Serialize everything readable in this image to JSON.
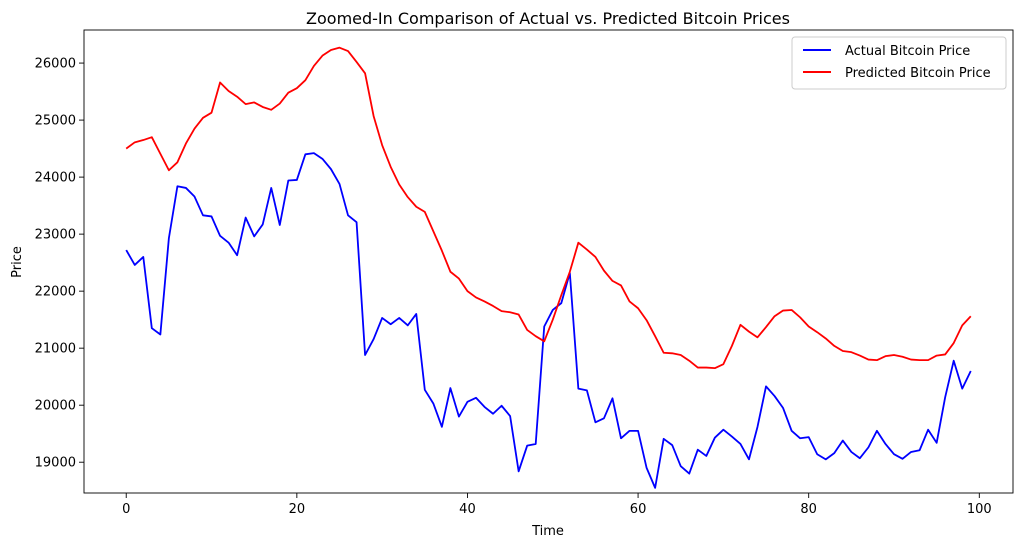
{
  "chart_data": {
    "type": "line",
    "title": "Zoomed-In Comparison of Actual vs. Predicted Bitcoin Prices",
    "xlabel": "Time",
    "ylabel": "Price",
    "xlim": [
      -4.95,
      103.95
    ],
    "ylim": [
      18460,
      26580
    ],
    "xticks": [
      0,
      20,
      40,
      60,
      80,
      100
    ],
    "yticks": [
      19000,
      20000,
      21000,
      22000,
      23000,
      24000,
      25000,
      26000
    ],
    "grid": false,
    "legend_position": "top-right",
    "x": [
      0,
      1,
      2,
      3,
      4,
      5,
      6,
      7,
      8,
      9,
      10,
      11,
      12,
      13,
      14,
      15,
      16,
      17,
      18,
      19,
      20,
      21,
      22,
      23,
      24,
      25,
      26,
      27,
      28,
      29,
      30,
      31,
      32,
      33,
      34,
      35,
      36,
      37,
      38,
      39,
      40,
      41,
      42,
      43,
      44,
      45,
      46,
      47,
      48,
      49,
      50,
      51,
      52,
      53,
      54,
      55,
      56,
      57,
      58,
      59,
      60,
      61,
      62,
      63,
      64,
      65,
      66,
      67,
      68,
      69,
      70,
      71,
      72,
      73,
      74,
      75,
      76,
      77,
      78,
      79,
      80,
      81,
      82,
      83,
      84,
      85,
      86,
      87,
      88,
      89,
      90,
      91,
      92,
      93,
      94,
      95,
      96,
      97,
      98,
      99
    ],
    "series": [
      {
        "name": "Actual Bitcoin Price",
        "color": "#0000ff",
        "values": [
          22720,
          22460,
          22600,
          21350,
          21240,
          22930,
          23840,
          23810,
          23660,
          23330,
          23310,
          22970,
          22850,
          22630,
          23290,
          22960,
          23170,
          23810,
          23160,
          23940,
          23950,
          24400,
          24420,
          24320,
          24140,
          23880,
          23330,
          23210,
          20880,
          21160,
          21530,
          21420,
          21530,
          21400,
          21600,
          20270,
          20030,
          19620,
          20300,
          19800,
          20060,
          20130,
          19970,
          19850,
          19990,
          19810,
          18840,
          19290,
          19320,
          21380,
          21670,
          21790,
          22320,
          20290,
          20260,
          19700,
          19770,
          20120,
          19420,
          19550,
          19550,
          18900,
          18550,
          19410,
          19300,
          18930,
          18800,
          19220,
          19110,
          19430,
          19570,
          19450,
          19320,
          19050,
          19620,
          20330,
          20160,
          19950,
          19550,
          19420,
          19440,
          19140,
          19050,
          19160,
          19380,
          19180,
          19070,
          19260,
          19550,
          19320,
          19140,
          19060,
          19180,
          19210,
          19570,
          19340,
          20140,
          20780,
          20290,
          20600
        ]
      },
      {
        "name": "Predicted Bitcoin Price",
        "color": "#ff0000",
        "values": [
          24500,
          24610,
          24650,
          24700,
          24410,
          24120,
          24260,
          24590,
          24850,
          25040,
          25130,
          25660,
          25510,
          25410,
          25280,
          25310,
          25230,
          25180,
          25290,
          25480,
          25560,
          25700,
          25950,
          26130,
          26230,
          26270,
          26210,
          26020,
          25820,
          25070,
          24560,
          24180,
          23870,
          23650,
          23480,
          23390,
          23050,
          22710,
          22340,
          22220,
          22000,
          21890,
          21820,
          21740,
          21650,
          21630,
          21590,
          21320,
          21210,
          21120,
          21500,
          21930,
          22340,
          22850,
          22730,
          22600,
          22360,
          22180,
          22100,
          21820,
          21700,
          21490,
          21210,
          20920,
          20910,
          20880,
          20780,
          20660,
          20660,
          20650,
          20720,
          21040,
          21410,
          21290,
          21190,
          21370,
          21560,
          21660,
          21670,
          21540,
          21380,
          21280,
          21170,
          21040,
          20950,
          20930,
          20870,
          20800,
          20790,
          20860,
          20880,
          20850,
          20800,
          20790,
          20790,
          20870,
          20890,
          21090,
          21400,
          21560
        ]
      }
    ]
  }
}
